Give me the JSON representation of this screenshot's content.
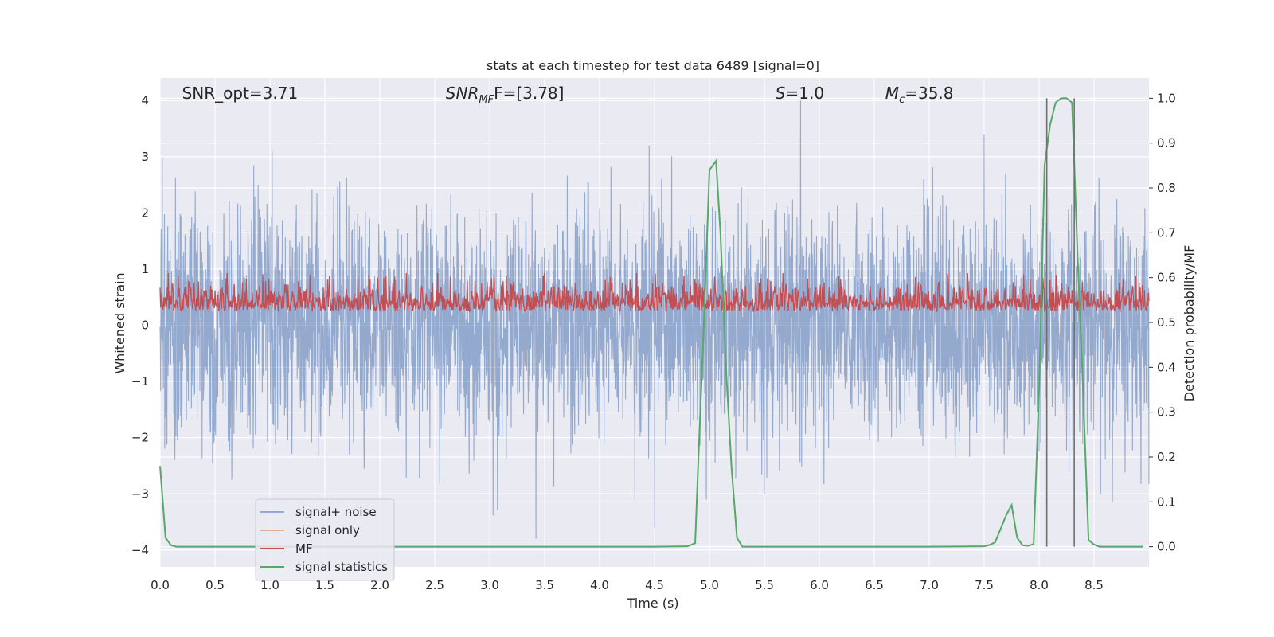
{
  "chart_data": {
    "type": "line",
    "title": "stats at each timestep for test data 6489 [signal=0]",
    "xlabel": "Time (s)",
    "ylabel": "Whitened strain",
    "ylabel_right": "Detection probability/MF",
    "xlim": [
      0.0,
      9.0
    ],
    "ylim": [
      -4.3,
      4.4
    ],
    "ylim_right": [
      -0.045,
      1.045
    ],
    "xticks": [
      "0.0",
      "0.5",
      "1.0",
      "1.5",
      "2.0",
      "2.5",
      "3.0",
      "3.5",
      "4.0",
      "4.5",
      "5.0",
      "5.5",
      "6.0",
      "6.5",
      "7.0",
      "7.5",
      "8.0",
      "8.5"
    ],
    "yticks": [
      "4",
      "3",
      "2",
      "1",
      "0",
      "−1",
      "−2",
      "−3",
      "−4"
    ],
    "yticks_right": [
      "1.0",
      "0.9",
      "0.8",
      "0.7",
      "0.6",
      "0.5",
      "0.4",
      "0.3",
      "0.2",
      "0.1",
      "0.0"
    ],
    "grid": true,
    "legend": "lower-left",
    "annotations": [
      {
        "text": "SNR_opt=3.71",
        "x_data": 0.2
      },
      {
        "text": "SNR",
        "sub": "MF",
        "rest": "F=[3.78]",
        "x_data": 2.6
      },
      {
        "text": "S",
        "rest": "=1.0",
        "x_data": 5.6
      },
      {
        "text": "M",
        "sub": "c",
        "rest": "=35.8",
        "x_data": 6.6
      }
    ],
    "series": [
      {
        "name": "signal+ noise",
        "color": "#4c72b0",
        "kind": "noise",
        "sigma": 1.0,
        "duration": 9.0,
        "notable_peaks": [
          [
            1.02,
            3.1
          ],
          [
            4.45,
            3.2
          ],
          [
            5.83,
            4.0
          ],
          [
            7.5,
            3.4
          ],
          [
            0.02,
            3.0
          ],
          [
            3.42,
            -3.8
          ],
          [
            4.5,
            -3.6
          ],
          [
            5.5,
            -3.0
          ]
        ]
      },
      {
        "name": "signal only",
        "color": "#dd8452",
        "values": []
      },
      {
        "name": "MF",
        "color": "#c44e52",
        "kind": "mf",
        "range_right": [
          0.5,
          0.6
        ],
        "duration": 9.0
      },
      {
        "name": "signal statistics",
        "color": "#55a868",
        "x": [
          0.0,
          0.05,
          0.1,
          0.15,
          0.2,
          1.0,
          2.0,
          3.0,
          4.0,
          4.5,
          4.8,
          4.87,
          4.9,
          4.95,
          5.0,
          5.06,
          5.1,
          5.15,
          5.2,
          5.25,
          5.3,
          5.35,
          5.5,
          6.0,
          6.5,
          7.0,
          7.5,
          7.55,
          7.6,
          7.65,
          7.7,
          7.75,
          7.8,
          7.85,
          7.9,
          7.95,
          8.0,
          8.05,
          8.1,
          8.15,
          8.2,
          8.25,
          8.3,
          8.35,
          8.4,
          8.45,
          8.5,
          8.55,
          8.6,
          8.75,
          8.95
        ],
        "y": [
          0.18,
          0.02,
          0.003,
          0.0,
          0.0,
          0.0,
          0.0,
          0.0,
          0.0,
          0.0,
          0.001,
          0.008,
          0.2,
          0.5,
          0.84,
          0.86,
          0.7,
          0.4,
          0.18,
          0.02,
          0.0,
          0.0,
          0.0,
          0.0,
          0.0,
          0.0,
          0.001,
          0.004,
          0.01,
          0.04,
          0.07,
          0.093,
          0.02,
          0.003,
          0.002,
          0.006,
          0.35,
          0.85,
          0.94,
          0.99,
          1.0,
          1.0,
          0.99,
          0.65,
          0.35,
          0.015,
          0.005,
          0.0,
          0.0,
          0.0,
          0.0
        ]
      }
    ],
    "vlines": [
      8.07,
      8.32
    ],
    "vline_color": "#707070"
  }
}
